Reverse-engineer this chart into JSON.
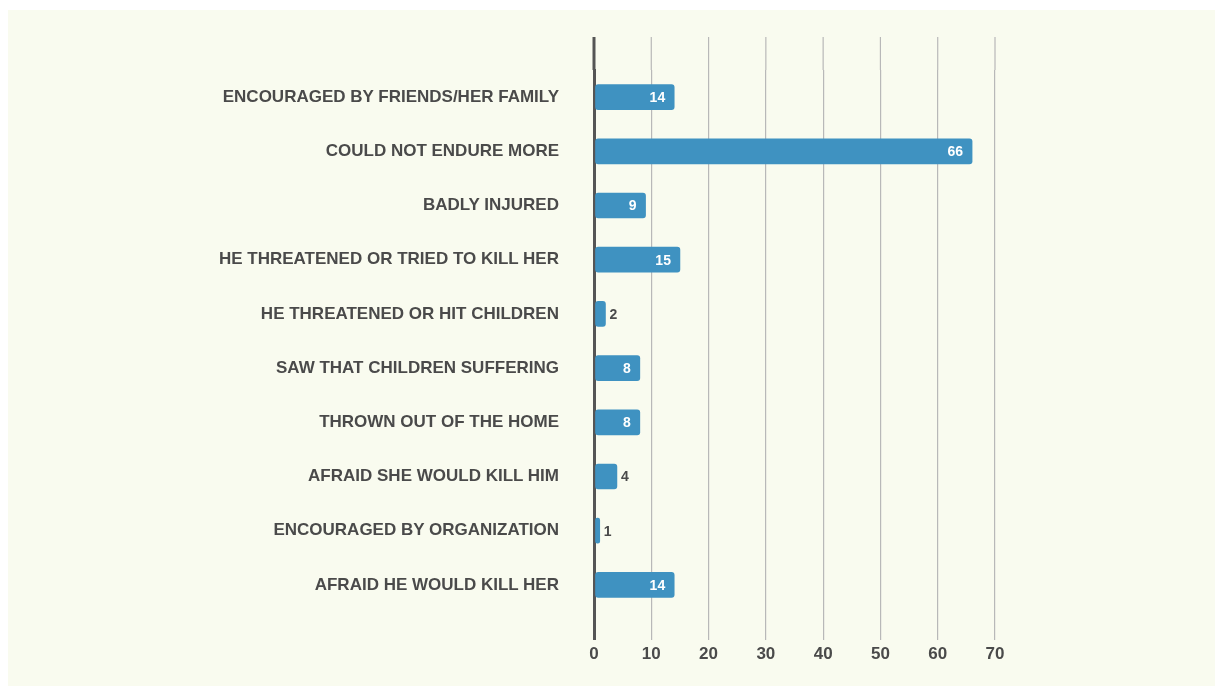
{
  "chart_data": {
    "type": "bar",
    "orientation": "horizontal",
    "categories": [
      "ENCOURAGED BY FRIENDS/HER FAMILY",
      "COULD NOT ENDURE MORE",
      "BADLY INJURED",
      "HE THREATENED OR TRIED TO KILL HER",
      "HE THREATENED OR HIT CHILDREN",
      "SAW THAT CHILDREN SUFFERING",
      "THROWN OUT OF THE HOME",
      "AFRAID SHE WOULD KILL HIM",
      "ENCOURAGED BY ORGANIZATION",
      "AFRAID HE WOULD KILL HER"
    ],
    "values": [
      14,
      66,
      9,
      15,
      2,
      8,
      8,
      4,
      1,
      14
    ],
    "color": "#3f92c1",
    "xlim": [
      0,
      70
    ],
    "xticks": [
      0,
      10,
      20,
      30,
      40,
      50,
      60,
      70
    ],
    "grid": "x",
    "data_labels": true
  }
}
